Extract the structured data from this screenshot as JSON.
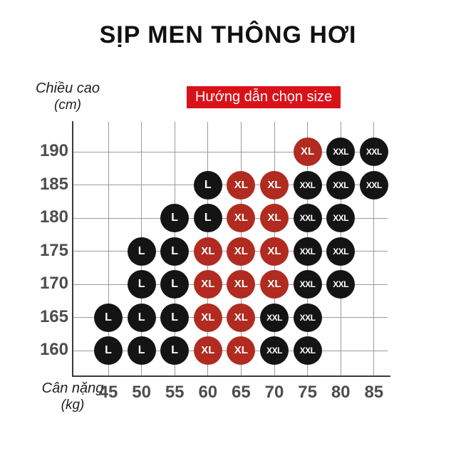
{
  "colors": {
    "banner_bg": "#d9121a",
    "banner_text": "#ffffff",
    "point_red": "#b12b20",
    "point_black": "#141414",
    "grid_line": "#9b9b9b",
    "axis_line": "#3a3a3a",
    "tick_text": "#4d4d4d",
    "title_text": "#111111"
  },
  "chart_data": {
    "type": "scatter",
    "title": "SỊP MEN THÔNG HƠI",
    "banner": "Hướng dẫn chọn size",
    "xlabel": "Cân nặng",
    "xlabel_unit": "(kg)",
    "ylabel": "Chiều cao",
    "ylabel_unit": "(cm)",
    "x_ticks": [
      45,
      50,
      55,
      60,
      65,
      70,
      75,
      80,
      85
    ],
    "y_ticks": [
      190,
      185,
      180,
      175,
      170,
      165,
      160
    ],
    "xlim": [
      40,
      87.5
    ],
    "ylim": [
      156,
      194.5
    ],
    "grid": true,
    "legend_position": "none",
    "points": [
      {
        "weight": 75,
        "height": 190,
        "label": "XL",
        "color": "red"
      },
      {
        "weight": 80,
        "height": 190,
        "label": "XXL",
        "color": "black"
      },
      {
        "weight": 85,
        "height": 190,
        "label": "XXL",
        "color": "black"
      },
      {
        "weight": 60,
        "height": 185,
        "label": "L",
        "color": "black"
      },
      {
        "weight": 65,
        "height": 185,
        "label": "XL",
        "color": "red"
      },
      {
        "weight": 70,
        "height": 185,
        "label": "XL",
        "color": "red"
      },
      {
        "weight": 75,
        "height": 185,
        "label": "XXL",
        "color": "black"
      },
      {
        "weight": 80,
        "height": 185,
        "label": "XXL",
        "color": "black"
      },
      {
        "weight": 85,
        "height": 185,
        "label": "XXL",
        "color": "black"
      },
      {
        "weight": 55,
        "height": 180,
        "label": "L",
        "color": "black"
      },
      {
        "weight": 60,
        "height": 180,
        "label": "L",
        "color": "black"
      },
      {
        "weight": 65,
        "height": 180,
        "label": "XL",
        "color": "red"
      },
      {
        "weight": 70,
        "height": 180,
        "label": "XL",
        "color": "red"
      },
      {
        "weight": 75,
        "height": 180,
        "label": "XXL",
        "color": "black"
      },
      {
        "weight": 80,
        "height": 180,
        "label": "XXL",
        "color": "black"
      },
      {
        "weight": 50,
        "height": 175,
        "label": "L",
        "color": "black"
      },
      {
        "weight": 55,
        "height": 175,
        "label": "L",
        "color": "black"
      },
      {
        "weight": 60,
        "height": 175,
        "label": "XL",
        "color": "red"
      },
      {
        "weight": 65,
        "height": 175,
        "label": "XL",
        "color": "red"
      },
      {
        "weight": 70,
        "height": 175,
        "label": "XL",
        "color": "red"
      },
      {
        "weight": 75,
        "height": 175,
        "label": "XXL",
        "color": "black"
      },
      {
        "weight": 80,
        "height": 175,
        "label": "XXL",
        "color": "black"
      },
      {
        "weight": 50,
        "height": 170,
        "label": "L",
        "color": "black"
      },
      {
        "weight": 55,
        "height": 170,
        "label": "L",
        "color": "black"
      },
      {
        "weight": 60,
        "height": 170,
        "label": "XL",
        "color": "red"
      },
      {
        "weight": 65,
        "height": 170,
        "label": "XL",
        "color": "red"
      },
      {
        "weight": 70,
        "height": 170,
        "label": "XL",
        "color": "red"
      },
      {
        "weight": 75,
        "height": 170,
        "label": "XXL",
        "color": "black"
      },
      {
        "weight": 80,
        "height": 170,
        "label": "XXL",
        "color": "black"
      },
      {
        "weight": 45,
        "height": 165,
        "label": "L",
        "color": "black"
      },
      {
        "weight": 50,
        "height": 165,
        "label": "L",
        "color": "black"
      },
      {
        "weight": 55,
        "height": 165,
        "label": "L",
        "color": "black"
      },
      {
        "weight": 60,
        "height": 165,
        "label": "XL",
        "color": "red"
      },
      {
        "weight": 65,
        "height": 165,
        "label": "XL",
        "color": "red"
      },
      {
        "weight": 70,
        "height": 165,
        "label": "XXL",
        "color": "black"
      },
      {
        "weight": 75,
        "height": 165,
        "label": "XXL",
        "color": "black"
      },
      {
        "weight": 45,
        "height": 160,
        "label": "L",
        "color": "black"
      },
      {
        "weight": 50,
        "height": 160,
        "label": "L",
        "color": "black"
      },
      {
        "weight": 55,
        "height": 160,
        "label": "L",
        "color": "black"
      },
      {
        "weight": 60,
        "height": 160,
        "label": "XL",
        "color": "red"
      },
      {
        "weight": 65,
        "height": 160,
        "label": "XL",
        "color": "red"
      },
      {
        "weight": 70,
        "height": 160,
        "label": "XXL",
        "color": "black"
      },
      {
        "weight": 75,
        "height": 160,
        "label": "XXL",
        "color": "black"
      }
    ]
  }
}
